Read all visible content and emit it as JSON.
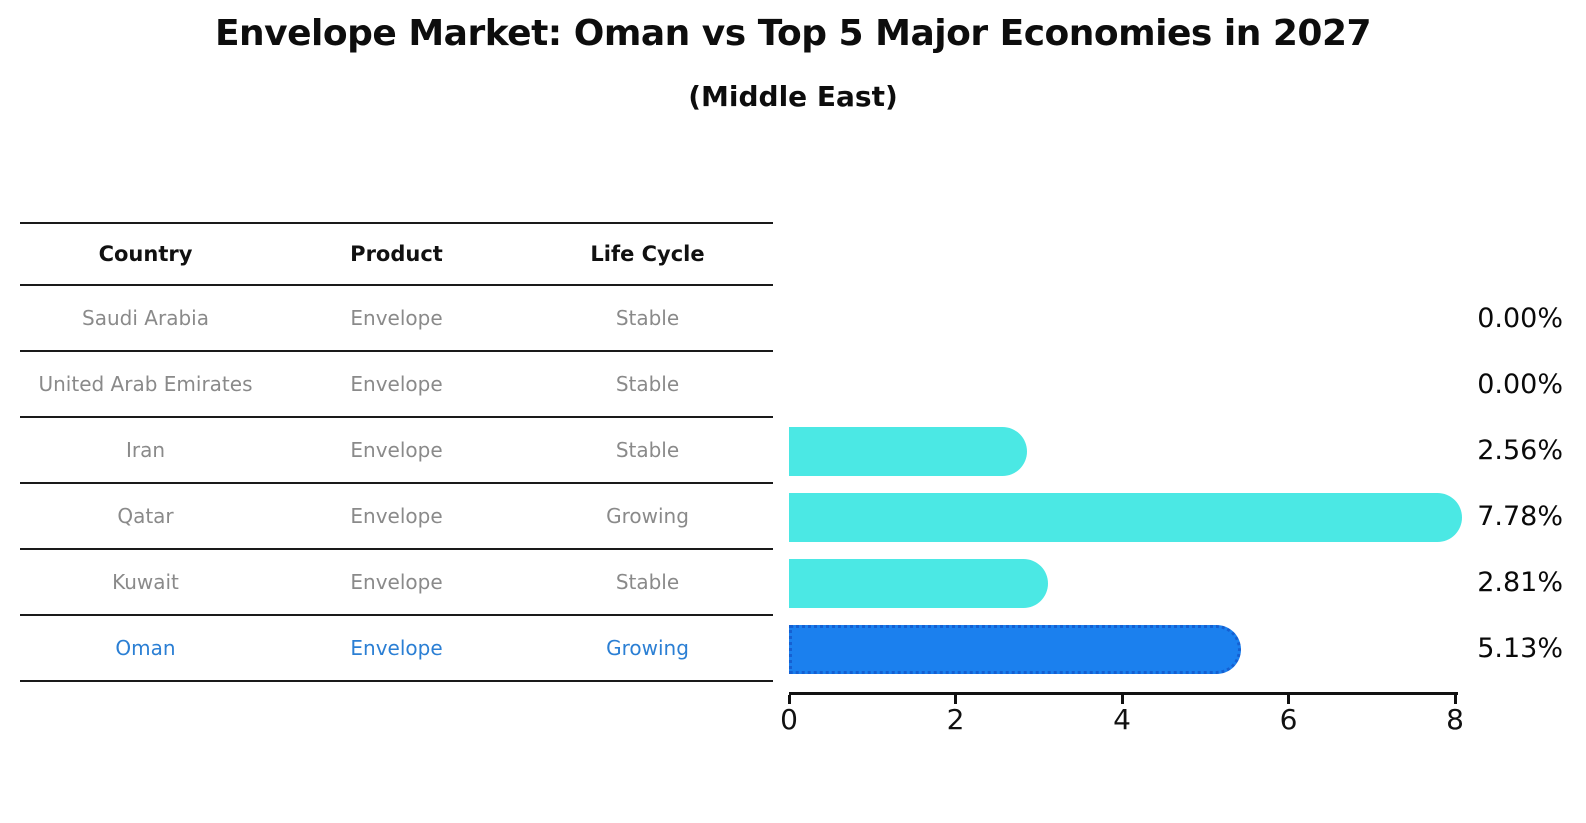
{
  "title": "Envelope Market: Oman vs Top 5 Major Economies in 2027",
  "subtitle": "(Middle East)",
  "table": {
    "headers": [
      "Country",
      "Product",
      "Life Cycle"
    ],
    "rows": [
      {
        "country": "Saudi Arabia",
        "product": "Envelope",
        "life_cycle": "Stable",
        "highlighted": false
      },
      {
        "country": "United Arab Emirates",
        "product": "Envelope",
        "life_cycle": "Stable",
        "highlighted": false
      },
      {
        "country": "Iran",
        "product": "Envelope",
        "life_cycle": "Stable",
        "highlighted": false
      },
      {
        "country": "Qatar",
        "product": "Envelope",
        "life_cycle": "Growing",
        "highlighted": false
      },
      {
        "country": "Kuwait",
        "product": "Envelope",
        "life_cycle": "Stable",
        "highlighted": false
      },
      {
        "country": "Oman",
        "product": "Envelope",
        "life_cycle": "Growing",
        "highlighted": true
      }
    ]
  },
  "chart_data": {
    "type": "bar",
    "orientation": "horizontal",
    "title": "Envelope Market: Oman vs Top 5 Major Economies in 2027",
    "subtitle": "(Middle East)",
    "categories": [
      "Saudi Arabia",
      "United Arab Emirates",
      "Iran",
      "Qatar",
      "Kuwait",
      "Oman"
    ],
    "values": [
      0.0,
      0.0,
      2.56,
      7.78,
      2.81,
      5.13
    ],
    "value_labels": [
      "0.00%",
      "0.00%",
      "2.56%",
      "7.78%",
      "2.81%",
      "5.13%"
    ],
    "x_ticks": [
      0,
      2,
      4,
      6,
      8
    ],
    "xlim": [
      0,
      8
    ],
    "grid": false,
    "legend": false,
    "highlight_index": 5
  },
  "colors": {
    "bar_fill": "#4be8e4",
    "highlight_bar_fill": "#1b80ee",
    "highlight_bar_border": "#1560d2",
    "highlight_text": "#2b7fd4",
    "row_text": "#8a8a8a",
    "header_text": "#111111",
    "axis": "#111111"
  }
}
